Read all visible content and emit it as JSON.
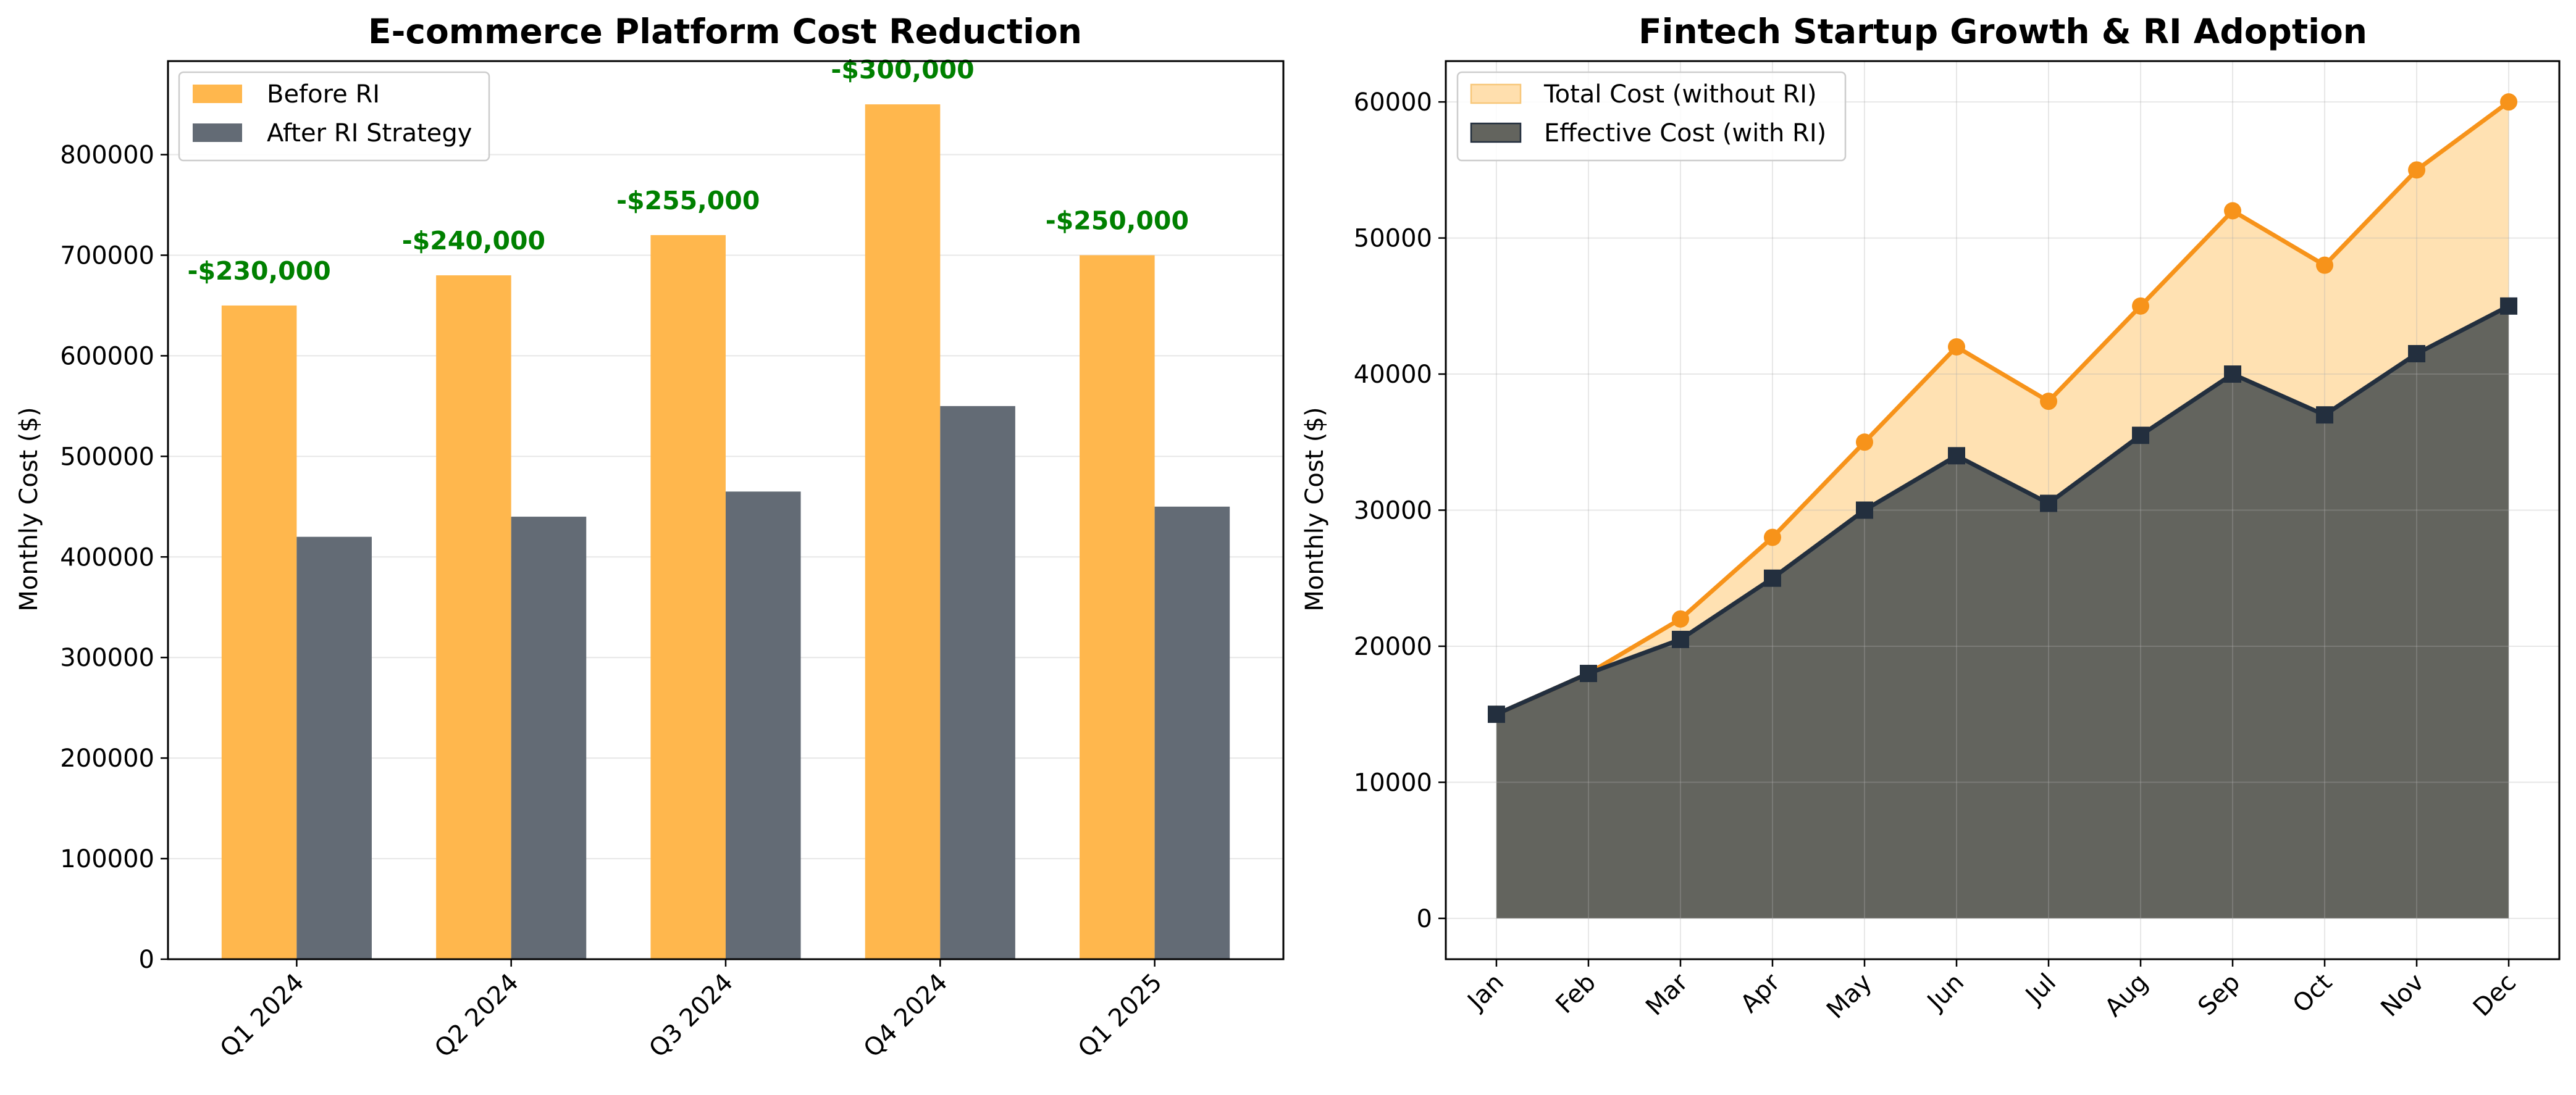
{
  "chart_data": [
    {
      "type": "bar",
      "title": "E-commerce Platform Cost Reduction",
      "xlabel": "",
      "ylabel": "Monthly Cost ($)",
      "ylim": [
        0,
        893000
      ],
      "yticks": [
        0,
        100000,
        200000,
        300000,
        400000,
        500000,
        600000,
        700000,
        800000
      ],
      "categories": [
        "Q1 2024",
        "Q2 2024",
        "Q3 2024",
        "Q4 2024",
        "Q1 2025"
      ],
      "series": [
        {
          "name": "Before RI",
          "color": "#FFB74D",
          "values": [
            650000,
            680000,
            720000,
            850000,
            700000
          ]
        },
        {
          "name": "After RI Strategy",
          "color": "#636B75",
          "values": [
            420000,
            440000,
            465000,
            550000,
            450000
          ]
        }
      ],
      "annotations": [
        "-$230,000",
        "-$240,000",
        "-$255,000",
        "-$300,000",
        "-$250,000"
      ],
      "annotation_color": "#008000",
      "grid": "y",
      "legend": "top-left"
    },
    {
      "type": "area",
      "title": "Fintech Startup Growth & RI Adoption",
      "xlabel": "",
      "ylabel": "Monthly Cost ($)",
      "ylim": [
        -3000,
        63000
      ],
      "yticks": [
        0,
        10000,
        20000,
        30000,
        40000,
        50000,
        60000
      ],
      "categories": [
        "Jan",
        "Feb",
        "Mar",
        "Apr",
        "May",
        "Jun",
        "Jul",
        "Aug",
        "Sep",
        "Oct",
        "Nov",
        "Dec"
      ],
      "series": [
        {
          "name": "Total Cost (without RI)",
          "line_color": "#F7931A",
          "fill_color": "#FFDFAE",
          "marker": "circle",
          "values": [
            15000,
            18000,
            22000,
            28000,
            35000,
            42000,
            38000,
            45000,
            52000,
            48000,
            55000,
            60000
          ]
        },
        {
          "name": "Effective Cost (with RI)",
          "line_color": "#232F3E",
          "fill_color": "#63645E",
          "marker": "square",
          "values": [
            15000,
            18000,
            20500,
            25000,
            30000,
            34000,
            30500,
            35500,
            40000,
            37000,
            41500,
            45000
          ]
        }
      ],
      "grid": "both",
      "legend": "top-left"
    }
  ]
}
